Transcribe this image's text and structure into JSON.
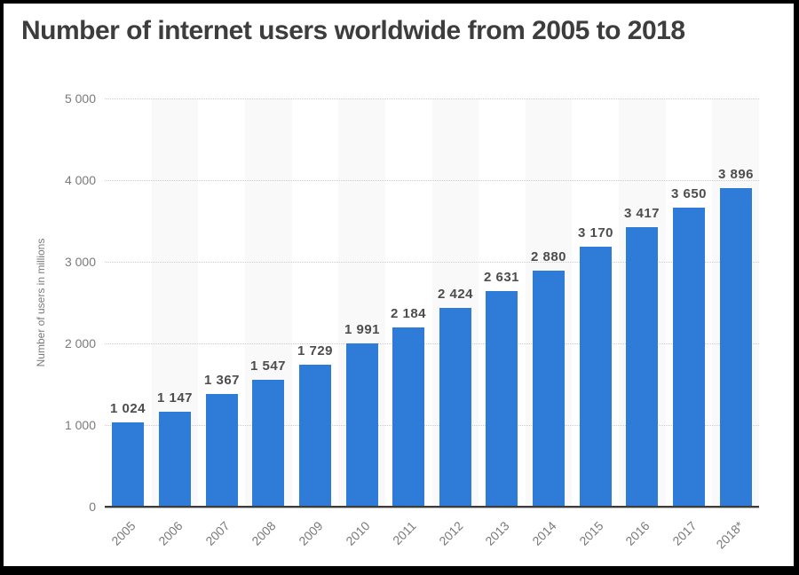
{
  "chart_data": {
    "type": "bar",
    "title": "Number of internet users worldwide from 2005 to 2018",
    "ylabel": "Number of users in millions",
    "xlabel": "",
    "categories": [
      "2005",
      "2006",
      "2007",
      "2008",
      "2009",
      "2010",
      "2011",
      "2012",
      "2013",
      "2014",
      "2015",
      "2016",
      "2017",
      "2018*"
    ],
    "values": [
      1024,
      1147,
      1367,
      1547,
      1729,
      1991,
      2184,
      2424,
      2631,
      2880,
      3170,
      3417,
      3650,
      3896
    ],
    "ylim": [
      0,
      5000
    ],
    "yticks": [
      0,
      1000,
      2000,
      3000,
      4000,
      5000
    ],
    "grid": "horizontal-dotted",
    "legend": "none",
    "number_format": "space thousands separator",
    "colors": {
      "bar": "#2e7bd8",
      "band": "#f9f9f9",
      "gridline": "#cccccc",
      "axis_line": "#3c3c3c",
      "title_text": "#3d3d3d",
      "value_label_text": "#4d4d4d",
      "tick_label_text": "#7a7a7a",
      "frame_border": "#000000",
      "background": "#ffffff"
    }
  }
}
